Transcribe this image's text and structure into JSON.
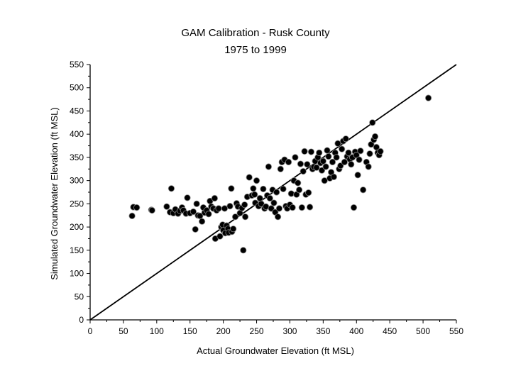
{
  "chart_data": {
    "type": "scatter",
    "title": "GAM Calibration - Rusk County",
    "subtitle": "1975 to 1999",
    "xlabel": "Actual Groundwater Elevation (ft MSL)",
    "ylabel": "Simulated Groundwater Elevation (ft MSL)",
    "xlim": [
      0,
      550
    ],
    "ylim": [
      0,
      550
    ],
    "xticks": [
      0,
      50,
      100,
      150,
      200,
      250,
      300,
      350,
      400,
      450,
      500,
      550
    ],
    "yticks": [
      0,
      50,
      100,
      150,
      200,
      250,
      300,
      350,
      400,
      450,
      500,
      550
    ],
    "grid": false,
    "legend": "none",
    "reference_line": {
      "name": "1:1 line",
      "x": [
        0,
        550
      ],
      "y": [
        0,
        550
      ]
    },
    "series": [
      {
        "name": "Observations",
        "points": [
          [
            63,
            224
          ],
          [
            65,
            243
          ],
          [
            70,
            242
          ],
          [
            92,
            237
          ],
          [
            93,
            236
          ],
          [
            115,
            244
          ],
          [
            120,
            232
          ],
          [
            122,
            283
          ],
          [
            125,
            230
          ],
          [
            128,
            238
          ],
          [
            132,
            229
          ],
          [
            135,
            235
          ],
          [
            138,
            242
          ],
          [
            140,
            236
          ],
          [
            144,
            229
          ],
          [
            146,
            263
          ],
          [
            150,
            230
          ],
          [
            155,
            233
          ],
          [
            158,
            195
          ],
          [
            160,
            250
          ],
          [
            162,
            225
          ],
          [
            165,
            224
          ],
          [
            168,
            212
          ],
          [
            170,
            242
          ],
          [
            172,
            231
          ],
          [
            175,
            236
          ],
          [
            178,
            228
          ],
          [
            180,
            256
          ],
          [
            182,
            244
          ],
          [
            185,
            240
          ],
          [
            187,
            262
          ],
          [
            188,
            175
          ],
          [
            190,
            236
          ],
          [
            193,
            240
          ],
          [
            195,
            180
          ],
          [
            197,
            200
          ],
          [
            199,
            205
          ],
          [
            200,
            193
          ],
          [
            202,
            240
          ],
          [
            203,
            187
          ],
          [
            205,
            203
          ],
          [
            207,
            196
          ],
          [
            208,
            188
          ],
          [
            210,
            245
          ],
          [
            212,
            283
          ],
          [
            213,
            190
          ],
          [
            215,
            196
          ],
          [
            218,
            222
          ],
          [
            220,
            251
          ],
          [
            222,
            244
          ],
          [
            225,
            230
          ],
          [
            228,
            241
          ],
          [
            230,
            150
          ],
          [
            232,
            248
          ],
          [
            233,
            222
          ],
          [
            236,
            265
          ],
          [
            239,
            307
          ],
          [
            243,
            268
          ],
          [
            245,
            283
          ],
          [
            247,
            270
          ],
          [
            248,
            252
          ],
          [
            250,
            300
          ],
          [
            253,
            245
          ],
          [
            255,
            262
          ],
          [
            257,
            250
          ],
          [
            260,
            282
          ],
          [
            262,
            240
          ],
          [
            264,
            244
          ],
          [
            266,
            268
          ],
          [
            268,
            330
          ],
          [
            270,
            262
          ],
          [
            272,
            240
          ],
          [
            274,
            280
          ],
          [
            276,
            252
          ],
          [
            278,
            232
          ],
          [
            280,
            275
          ],
          [
            282,
            222
          ],
          [
            284,
            240
          ],
          [
            286,
            325
          ],
          [
            288,
            340
          ],
          [
            290,
            282
          ],
          [
            292,
            345
          ],
          [
            294,
            245
          ],
          [
            296,
            240
          ],
          [
            298,
            340
          ],
          [
            300,
            248
          ],
          [
            302,
            272
          ],
          [
            304,
            242
          ],
          [
            306,
            300
          ],
          [
            308,
            350
          ],
          [
            310,
            270
          ],
          [
            312,
            295
          ],
          [
            314,
            280
          ],
          [
            316,
            336
          ],
          [
            318,
            242
          ],
          [
            320,
            320
          ],
          [
            322,
            363
          ],
          [
            324,
            270
          ],
          [
            326,
            335
          ],
          [
            328,
            274
          ],
          [
            330,
            243
          ],
          [
            332,
            362
          ],
          [
            334,
            325
          ],
          [
            336,
            330
          ],
          [
            338,
            342
          ],
          [
            340,
            328
          ],
          [
            342,
            350
          ],
          [
            344,
            360
          ],
          [
            346,
            338
          ],
          [
            348,
            322
          ],
          [
            350,
            342
          ],
          [
            352,
            300
          ],
          [
            354,
            330
          ],
          [
            356,
            365
          ],
          [
            358,
            352
          ],
          [
            360,
            305
          ],
          [
            362,
            318
          ],
          [
            364,
            340
          ],
          [
            366,
            308
          ],
          [
            368,
            360
          ],
          [
            370,
            350
          ],
          [
            372,
            380
          ],
          [
            374,
            325
          ],
          [
            376,
            332
          ],
          [
            378,
            368
          ],
          [
            380,
            385
          ],
          [
            382,
            340
          ],
          [
            384,
            390
          ],
          [
            386,
            352
          ],
          [
            388,
            360
          ],
          [
            390,
            346
          ],
          [
            392,
            335
          ],
          [
            394,
            350
          ],
          [
            396,
            242
          ],
          [
            398,
            362
          ],
          [
            400,
            355
          ],
          [
            402,
            312
          ],
          [
            404,
            345
          ],
          [
            406,
            364
          ],
          [
            410,
            280
          ],
          [
            415,
            340
          ],
          [
            418,
            330
          ],
          [
            420,
            358
          ],
          [
            422,
            378
          ],
          [
            424,
            425
          ],
          [
            426,
            388
          ],
          [
            428,
            395
          ],
          [
            430,
            372
          ],
          [
            432,
            360
          ],
          [
            434,
            355
          ],
          [
            436,
            363
          ],
          [
            508,
            478
          ]
        ]
      }
    ]
  }
}
